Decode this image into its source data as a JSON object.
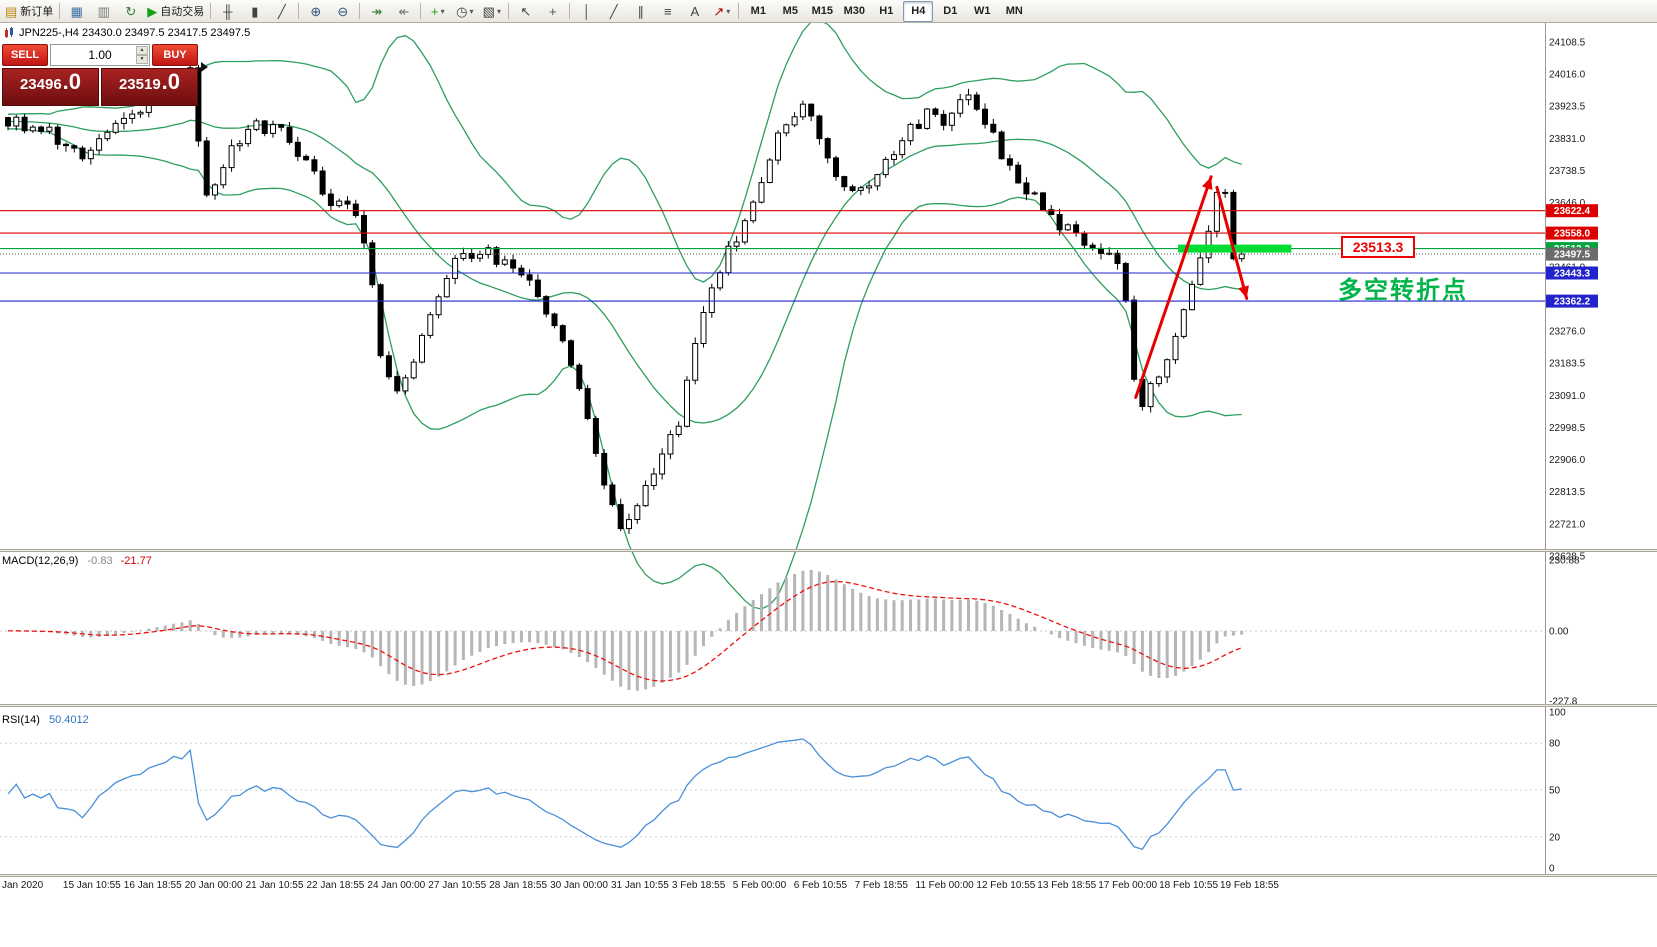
{
  "window": {
    "symbol_title": "JPN225-,H4 23430.0 23497.5 23417.5 23497.5"
  },
  "toolbar": {
    "items": [
      {
        "icon": "new-order-icon",
        "label": "新订单"
      },
      {
        "sep": true
      },
      {
        "icon": "chart-window-icon"
      },
      {
        "icon": "profiles-icon"
      },
      {
        "icon": "refresh-icon"
      },
      {
        "icon": "autotrading-icon",
        "label": "自动交易"
      },
      {
        "sep": true
      },
      {
        "icon": "bar-chart-icon"
      },
      {
        "icon": "candle-chart-icon"
      },
      {
        "icon": "line-chart-icon"
      },
      {
        "sep": true
      },
      {
        "icon": "zoom-in-icon"
      },
      {
        "icon": "zoom-out-icon"
      },
      {
        "sep": true
      },
      {
        "icon": "auto-scroll-icon"
      },
      {
        "icon": "chart-shift-icon"
      },
      {
        "sep": true
      },
      {
        "icon": "indicators-icon",
        "caret": true
      },
      {
        "icon": "periods-icon",
        "caret": true
      },
      {
        "icon": "templates-icon",
        "caret": true
      },
      {
        "sep": true
      },
      {
        "icon": "cursor-icon"
      },
      {
        "icon": "crosshair-icon"
      },
      {
        "sep": true
      },
      {
        "icon": "vertical-line-icon"
      },
      {
        "icon": "trendline-icon"
      },
      {
        "icon": "channel-icon"
      },
      {
        "icon": "fibonacci-icon"
      },
      {
        "icon": "text-icon"
      },
      {
        "icon": "arrow-tool-icon",
        "caret": true
      },
      {
        "sep": true
      }
    ],
    "timeframes": [
      "M1",
      "M5",
      "M15",
      "M30",
      "H1",
      "H4",
      "D1",
      "W1",
      "MN"
    ],
    "active_timeframe": "H4"
  },
  "trade_panel": {
    "sell_label": "SELL",
    "buy_label": "BUY",
    "volume": "1.00",
    "sell_price_main": "23496",
    "sell_price_frac": ".0",
    "buy_price_main": "23519",
    "buy_price_frac": ".0"
  },
  "chart_data": {
    "type": "candlestick",
    "symbol": "JPN225-",
    "timeframe": "H4",
    "last_ohlc": {
      "open": 23430.0,
      "high": 23497.5,
      "low": 23417.5,
      "close": 23497.5
    },
    "price_axis": {
      "ticks": [
        24108.5,
        24016.0,
        23923.5,
        23831.0,
        23738.5,
        23646.0,
        23553.5,
        23461.0,
        23368.5,
        23276.0,
        23183.5,
        23091.0,
        22998.5,
        22906.0,
        22813.5,
        22721.0,
        22628.5
      ]
    },
    "time_axis": [
      "Jan 2020",
      "15 Jan 10:55",
      "16 Jan 18:55",
      "20 Jan 00:00",
      "21 Jan 10:55",
      "22 Jan 18:55",
      "24 Jan 00:00",
      "27 Jan 10:55",
      "28 Jan 18:55",
      "30 Jan 00:00",
      "31 Jan 10:55",
      "3 Feb 18:55",
      "5 Feb 00:00",
      "6 Feb 10:55",
      "7 Feb 18:55",
      "11 Feb 00:00",
      "12 Feb 10:55",
      "13 Feb 18:55",
      "17 Feb 00:00",
      "18 Feb 10:55",
      "19 Feb 18:55"
    ],
    "candle_count": 150,
    "price_waypoints": [
      [
        0,
        23880
      ],
      [
        5,
        23845
      ],
      [
        9,
        23790
      ],
      [
        14,
        23900
      ],
      [
        19,
        23955
      ],
      [
        22,
        24015
      ],
      [
        23,
        23820
      ],
      [
        24,
        23660
      ],
      [
        27,
        23800
      ],
      [
        30,
        23870
      ],
      [
        33,
        23855
      ],
      [
        36,
        23750
      ],
      [
        39,
        23650
      ],
      [
        42,
        23625
      ],
      [
        44,
        23400
      ],
      [
        45,
        23185
      ],
      [
        47,
        23120
      ],
      [
        49,
        23180
      ],
      [
        51,
        23320
      ],
      [
        54,
        23470
      ],
      [
        57,
        23510
      ],
      [
        60,
        23470
      ],
      [
        63,
        23430
      ],
      [
        66,
        23290
      ],
      [
        69,
        23110
      ],
      [
        71,
        22940
      ],
      [
        73,
        22760
      ],
      [
        74,
        22700
      ],
      [
        76,
        22790
      ],
      [
        79,
        22920
      ],
      [
        81,
        23010
      ],
      [
        83,
        23260
      ],
      [
        86,
        23450
      ],
      [
        89,
        23600
      ],
      [
        92,
        23780
      ],
      [
        94,
        23880
      ],
      [
        96,
        23940
      ],
      [
        98,
        23840
      ],
      [
        100,
        23720
      ],
      [
        103,
        23690
      ],
      [
        106,
        23760
      ],
      [
        109,
        23850
      ],
      [
        111,
        23905
      ],
      [
        113,
        23860
      ],
      [
        115,
        23930
      ],
      [
        116,
        23965
      ],
      [
        118,
        23880
      ],
      [
        120,
        23790
      ],
      [
        123,
        23680
      ],
      [
        126,
        23610
      ],
      [
        129,
        23540
      ],
      [
        132,
        23490
      ],
      [
        134,
        23470
      ],
      [
        135,
        23350
      ],
      [
        136,
        23120
      ],
      [
        137,
        23070
      ],
      [
        138,
        23120
      ],
      [
        140,
        23200
      ],
      [
        142,
        23330
      ],
      [
        143,
        23400
      ],
      [
        144,
        23500
      ],
      [
        145,
        23580
      ],
      [
        146,
        23660
      ],
      [
        147,
        23690
      ],
      [
        148,
        23480
      ],
      [
        149,
        23497.5
      ]
    ],
    "bollinger": {
      "period": 20,
      "deviation": 2,
      "color": "#2e9e5e"
    },
    "levels": [
      {
        "price": 23622.4,
        "label": "23622.4",
        "color": "#dd0000",
        "style": "solid"
      },
      {
        "price": 23558.0,
        "label": "23558.0",
        "color": "#dd0000",
        "style": "solid"
      },
      {
        "price": 23513.3,
        "label": "23513.3",
        "color": "#00a33c",
        "style": "solid"
      },
      {
        "price": 23497.5,
        "label": "23497.5",
        "color": "#6b6b6b",
        "style": "dotted",
        "current_price": true
      },
      {
        "price": 23443.3,
        "label": "23443.3",
        "color": "#2323cc",
        "style": "solid"
      },
      {
        "price": 23362.2,
        "label": "23362.2",
        "color": "#2323cc",
        "style": "solid"
      }
    ],
    "annotations": {
      "highlight_bar": {
        "price": 23513.3,
        "from_bar": 141.3,
        "to_bar": 155,
        "color": "#00dd33"
      },
      "price_callout": {
        "text": "23513.3",
        "color": "#ee0000"
      },
      "note": {
        "text": "多空转折点",
        "color": "#00b44a"
      },
      "arrows": [
        {
          "from": [
            136.2,
            23085
          ],
          "to": [
            145.3,
            23720
          ],
          "color": "#e80000"
        },
        {
          "from": [
            146.0,
            23690
          ],
          "to": [
            149.6,
            23370
          ],
          "color": "#e80000"
        }
      ]
    },
    "macd": {
      "label": "MACD(12,26,9)",
      "value_main": "-0.83",
      "value_signal": "-21.77",
      "scale": {
        "max": 230.88,
        "max_label": "230.88",
        "zero_label": "0.00",
        "min": -227.8,
        "min_label": "-227.8"
      },
      "histogram_color": "#b6b6b6",
      "signal_color": "#ee1111"
    },
    "rsi": {
      "label": "RSI(14)",
      "value": "50.4012",
      "levels": [
        100,
        80,
        50,
        20,
        0
      ],
      "grid_levels": [
        80,
        50,
        20
      ],
      "color": "#4a90d9"
    }
  }
}
